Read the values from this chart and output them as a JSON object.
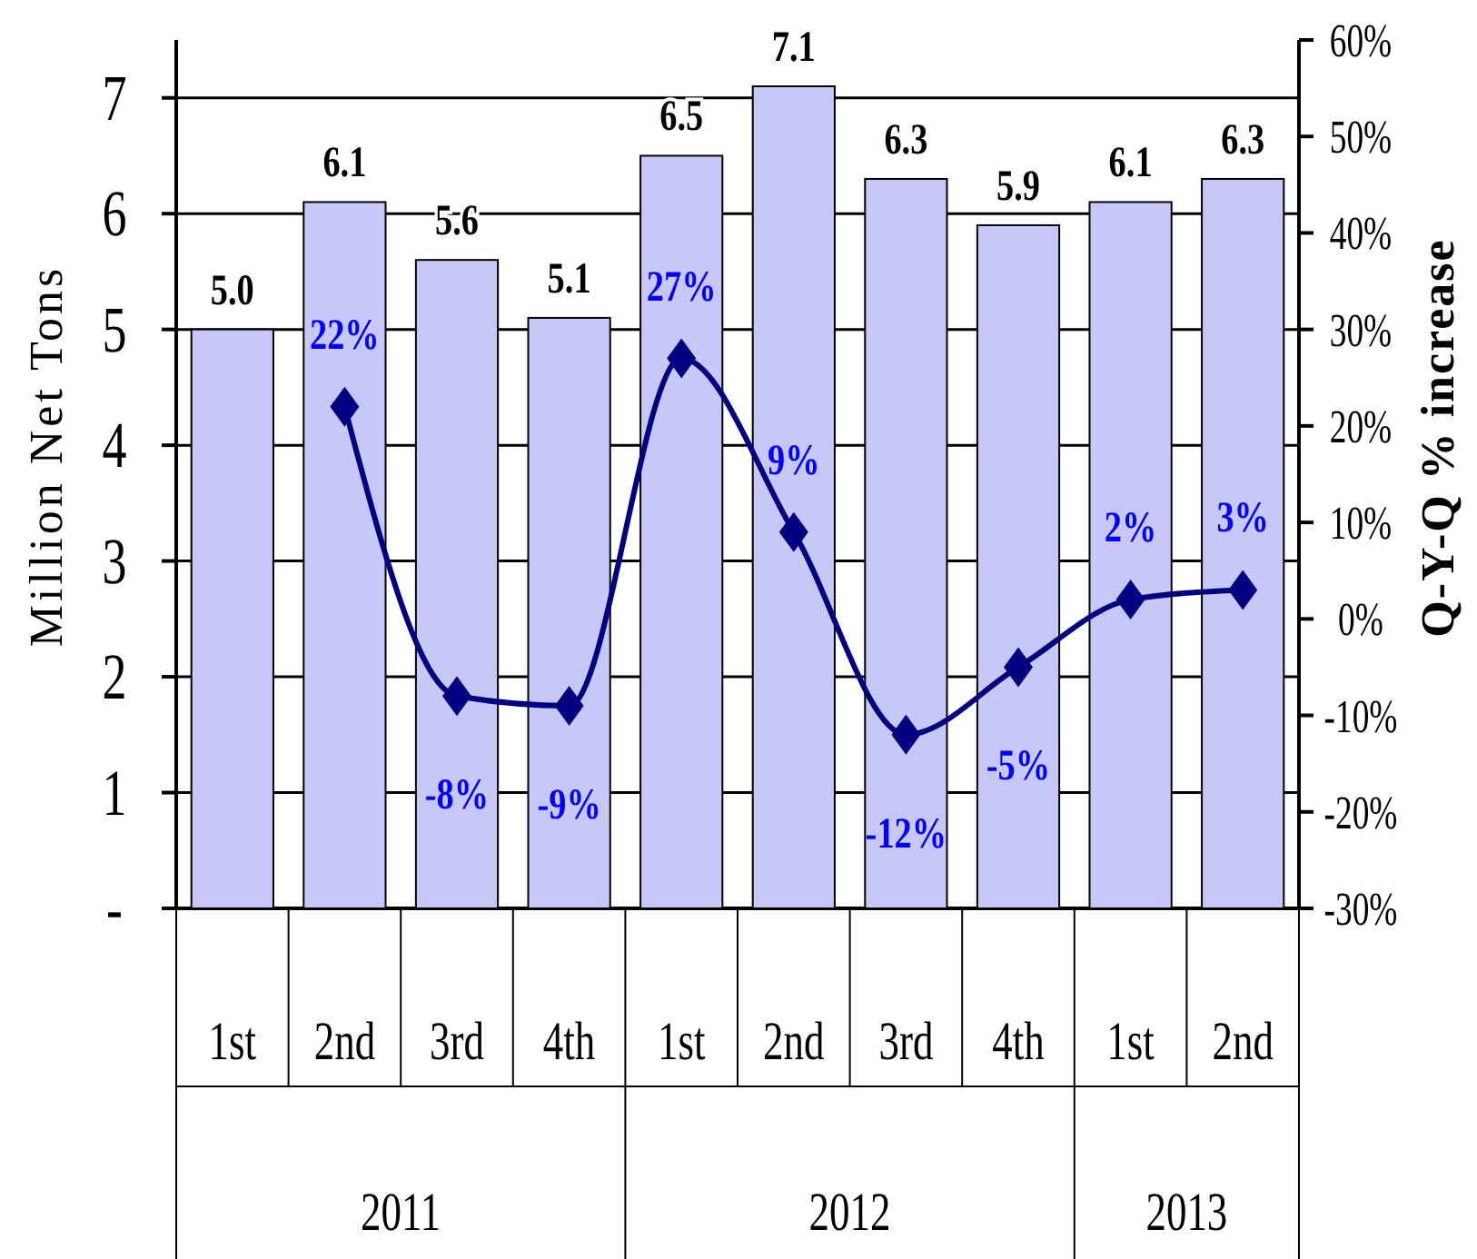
{
  "chart_data": {
    "type": "bar",
    "ylabel": "Million Net Tons",
    "y2label": "Q-Y-Q % increase",
    "categories": [
      "1st",
      "2nd",
      "3rd",
      "4th",
      "1st",
      "2nd",
      "3rd",
      "4th",
      "1st",
      "2nd"
    ],
    "series": [
      {
        "color": "#c8c8f8",
        "values": [
          5.0,
          6.1,
          5.6,
          5.1,
          6.5,
          7.1,
          6.3,
          5.9,
          6.1,
          6.3
        ],
        "value_labels": [
          "5.0",
          "6.1",
          "5.6",
          "5.1",
          "6.5",
          "7.1",
          "6.3",
          "5.9",
          "6.1",
          "6.3"
        ]
      },
      {
        "type": "line",
        "axis": "y2",
        "color": "#000080",
        "marker": "diamond",
        "line_style": "solid",
        "values": [
          null,
          22,
          -8,
          -9,
          27,
          9,
          -12,
          -5,
          2,
          3
        ],
        "value_labels": [
          null,
          "22%",
          "-8%",
          "-9%",
          "27%",
          "9%",
          "-12%",
          "-5%",
          "2%",
          "3%"
        ]
      }
    ],
    "annotations": [
      "2011",
      "2012",
      "2013"
    ],
    "ylim": [
      0,
      7.5
    ],
    "yticks": [
      {
        "value": 0,
        "label": "-"
      },
      1,
      2,
      3,
      4,
      5,
      6,
      7
    ],
    "y2lim": [
      -30,
      60
    ],
    "y2ticks": [
      {
        "value": -30,
        "label": "-30%"
      },
      {
        "value": -20,
        "label": "-20%"
      },
      {
        "value": -10,
        "label": "-10%"
      },
      {
        "value": 0,
        "label": "0%"
      },
      {
        "value": 10,
        "label": "10%"
      },
      {
        "value": 20,
        "label": "20%"
      },
      {
        "value": 30,
        "label": "30%"
      },
      {
        "value": 40,
        "label": "40%"
      },
      {
        "value": 50,
        "label": "50%"
      },
      {
        "value": 60,
        "label": "60%"
      }
    ],
    "grid": "y"
  }
}
